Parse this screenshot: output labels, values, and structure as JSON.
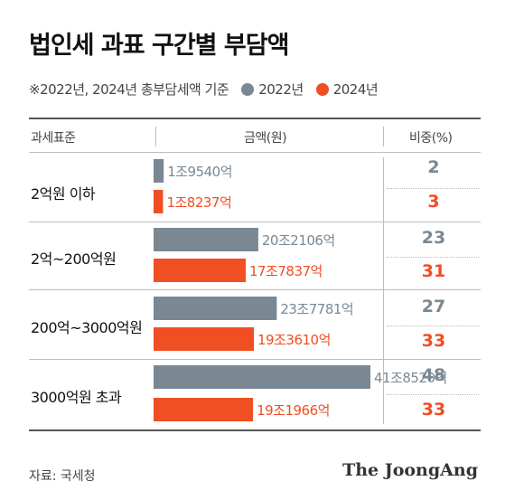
{
  "title": "법인세 과표 구간별 부담액",
  "subtitle": "※2022년, 2024년 총부담세액 기준",
  "columns": {
    "category": "과세표준",
    "amount": "금액(원)",
    "share": "비중(%)"
  },
  "source": "자료: 국세청",
  "logo": "The JoongAng",
  "colors": {
    "y2022": "#7a8894",
    "y2024": "#f04e23"
  },
  "chart_data": {
    "type": "bar",
    "orientation": "horizontal",
    "categories": [
      "2억원 이하",
      "2억~200억원",
      "200억~3000억원",
      "3000억원 초과"
    ],
    "series": [
      {
        "name": "2022년",
        "values": [
          1.954,
          20.2106,
          23.7781,
          41.852
        ],
        "value_labels": [
          "1조9540억",
          "20조2106억",
          "23조7781억",
          "41조8520억"
        ],
        "share_pct": [
          2,
          23,
          27,
          48
        ]
      },
      {
        "name": "2024년",
        "values": [
          1.8237,
          17.7837,
          19.361,
          19.1966
        ],
        "value_labels": [
          "1조8237억",
          "17조7837억",
          "19조3610억",
          "19조1966억"
        ],
        "share_pct": [
          3,
          31,
          33,
          33
        ]
      }
    ],
    "unit": "조원"
  }
}
